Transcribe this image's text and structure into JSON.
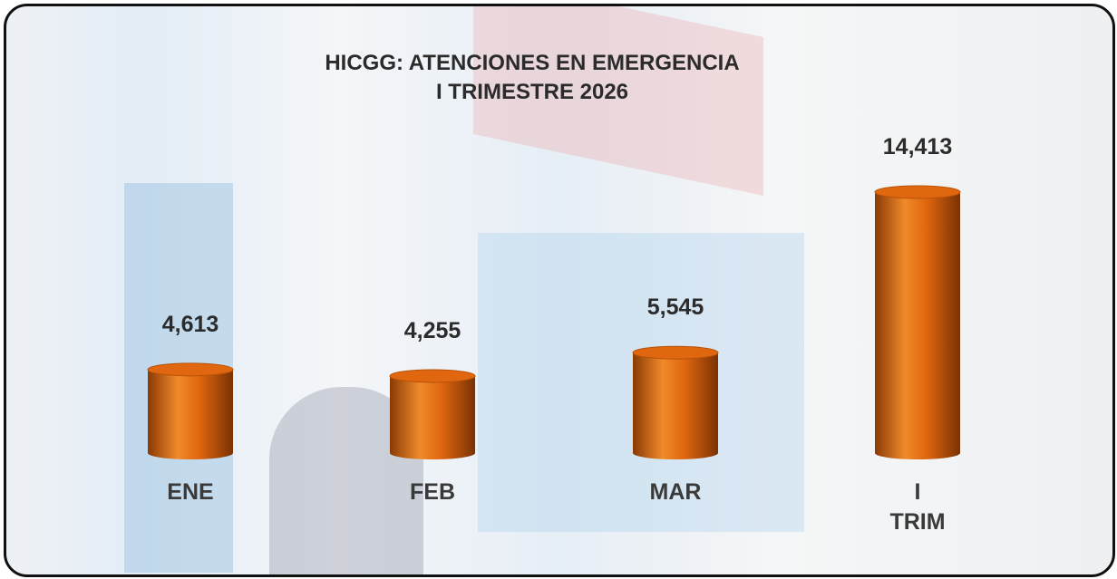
{
  "chart_data": {
    "type": "bar",
    "title": "HICGG: ATENCIONES  EN EMERGENCIA",
    "subtitle": "I TRIMESTRE  2026",
    "categories": [
      "ENE",
      "FEB",
      "MAR",
      "I TRIM"
    ],
    "values": [
      4613,
      4255,
      5545,
      14413
    ],
    "value_labels": [
      "4,613",
      "4,255",
      "5,545",
      "14,413"
    ],
    "color": "#e0670f"
  }
}
